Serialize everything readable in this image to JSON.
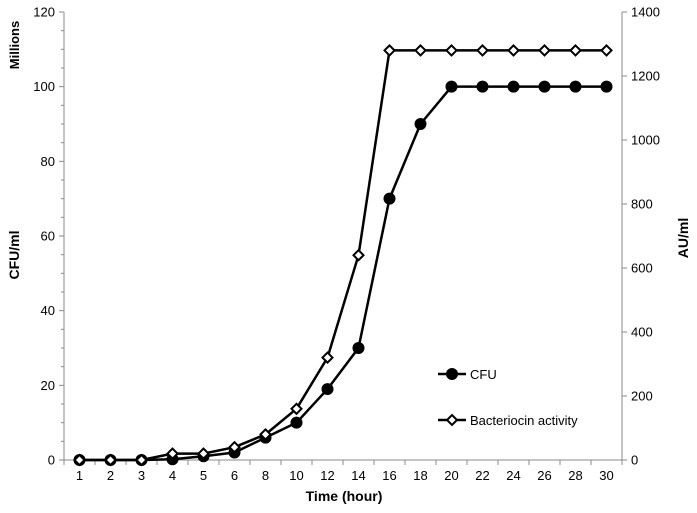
{
  "chart_data": {
    "type": "line",
    "categories": [
      "1",
      "2",
      "3",
      "4",
      "5",
      "6",
      "8",
      "10",
      "12",
      "14",
      "16",
      "18",
      "20",
      "22",
      "24",
      "26",
      "28",
      "30"
    ],
    "xlabel": "Time (hour)",
    "ylabel_left": "CFU/ml",
    "left_unit": "Millions",
    "ylabel_right": "AU/ml",
    "ylim_left": [
      0,
      120
    ],
    "yticks_left": [
      "0",
      "20",
      "40",
      "60",
      "80",
      "100",
      "120"
    ],
    "ylim_right": [
      0,
      1400
    ],
    "yticks_right": [
      "0",
      "200",
      "400",
      "600",
      "800",
      "1000",
      "1200",
      "1400"
    ],
    "grid": false,
    "legend_position": "bottom-right inside plot",
    "series": [
      {
        "name": "CFU",
        "axis": "left",
        "marker": "filled-circle",
        "color": "#000000",
        "values": [
          0,
          0,
          0,
          0.2,
          1,
          2,
          6,
          10,
          19,
          30,
          70,
          90,
          100,
          100,
          100,
          100,
          100,
          100
        ]
      },
      {
        "name": "Bacteriocin activity",
        "axis": "right",
        "marker": "open-diamond",
        "color": "#000000",
        "values": [
          0,
          0,
          0,
          20,
          20,
          40,
          80,
          160,
          320,
          640,
          1280,
          1280,
          1280,
          1280,
          1280,
          1280,
          1280,
          1280
        ]
      }
    ]
  }
}
